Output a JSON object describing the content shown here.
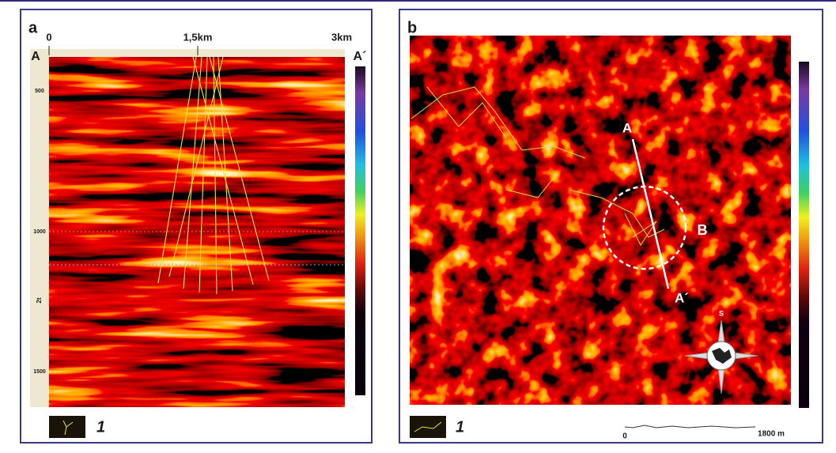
{
  "panel_a": {
    "label": "a",
    "distance_ticks": [
      "0",
      "1,5km",
      "3km"
    ],
    "section_start": "A",
    "section_end": "A´",
    "depth_ticks": [
      "500",
      "1000",
      "1500"
    ],
    "depth_axis": "2t",
    "legend": "1"
  },
  "panel_b": {
    "label": "b",
    "section_start": "A",
    "section_end": "A´",
    "circle_label": "B",
    "compass": "S",
    "scale_start": "0",
    "scale_end": "1800 m",
    "legend": "1"
  }
}
